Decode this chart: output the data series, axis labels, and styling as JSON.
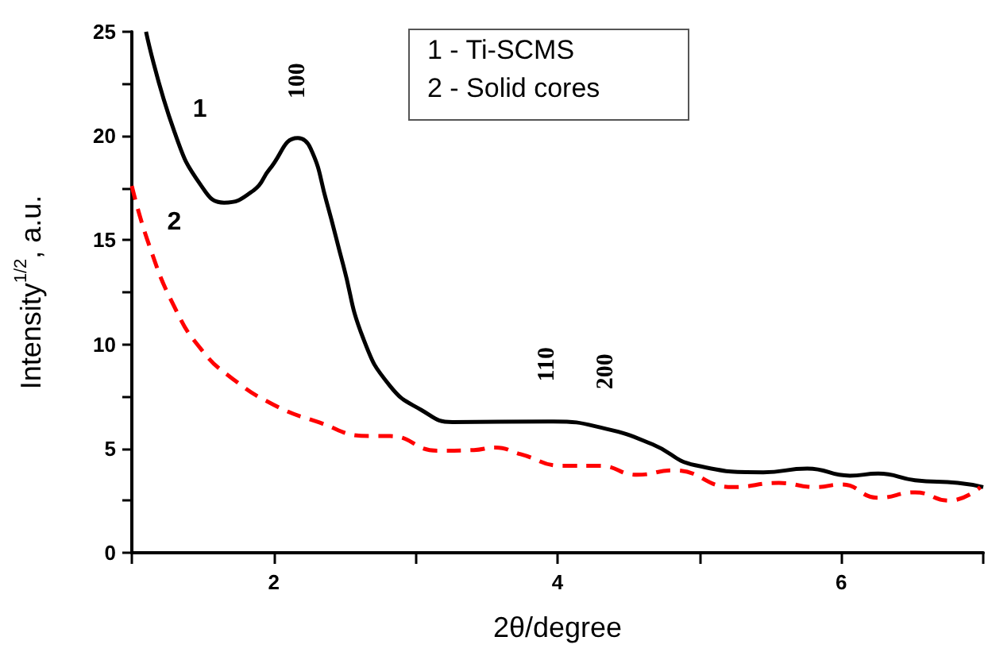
{
  "chart_data": {
    "type": "line",
    "xlabel": "2θ/degree",
    "ylabel": "Intensity$^{1/2}$, a.u.",
    "xlim": [
      1,
      7
    ],
    "xticks": [
      {
        "value": 1,
        "label": null
      },
      2,
      {
        "value": 3,
        "label": null
      },
      4,
      {
        "value": 5,
        "label": null
      },
      6,
      {
        "value": 7,
        "label": null
      }
    ],
    "ylim": [
      0,
      25
    ],
    "yticks": [
      0,
      {
        "value": 2.5,
        "label": null
      },
      5,
      {
        "value": 7.5,
        "label": null
      },
      10,
      {
        "value": 12.5,
        "label": null
      },
      15,
      {
        "value": 17.5,
        "label": null
      },
      20,
      {
        "value": 22.5,
        "label": null
      },
      25
    ],
    "grid": false,
    "legend": false,
    "marker": "none",
    "series": [
      {
        "name": "1",
        "color": "#000000",
        "line_style": "solid",
        "x": [
          1.1,
          1.3,
          1.49,
          1.65,
          1.86,
          1.97,
          2.17,
          2.26,
          2.37,
          2.49,
          2.63,
          2.82,
          3.04,
          3.26,
          3.93,
          3.97,
          4.34,
          4.67,
          4.97,
          5.45,
          5.76,
          6.06,
          6.26,
          6.52,
          6.82,
          7.0
        ],
        "values": [
          25,
          20.2,
          17.6,
          16.8,
          17.4,
          18.4,
          19.9,
          19.4,
          16.9,
          13.8,
          10.3,
          8.0,
          6.85,
          6.27,
          6.3,
          6.3,
          5.95,
          5.2,
          4.2,
          3.86,
          4.04,
          3.7,
          3.8,
          3.48,
          3.35,
          3.15
        ]
      },
      {
        "name": "2",
        "color": "#ff0000",
        "line_style": "dashed",
        "x": [
          1.0,
          1.12,
          1.3,
          1.49,
          1.71,
          2.0,
          2.3,
          2.67,
          2.82,
          3.15,
          3.41,
          3.56,
          3.74,
          4.04,
          4.3,
          4.56,
          4.82,
          5.23,
          5.56,
          5.82,
          6.0,
          6.26,
          6.52,
          6.76,
          6.98
        ],
        "values": [
          17.6,
          14.8,
          11.8,
          9.75,
          8.35,
          7.1,
          6.3,
          5.6,
          5.6,
          4.9,
          4.93,
          5.05,
          4.73,
          4.17,
          4.17,
          3.74,
          3.96,
          3.15,
          3.35,
          3.15,
          3.28,
          2.64,
          2.9,
          2.5,
          3.15
        ]
      }
    ],
    "annotations": [
      "1 - Ti-SCMS",
      "2 - Solid cores",
      {
        "text": "100",
        "x": 2.17,
        "y": 19.9
      },
      {
        "text": "110",
        "x": 3.93,
        "y": 6.3
      },
      {
        "text": "200",
        "x": 4.34,
        "y": 5.95
      }
    ]
  }
}
